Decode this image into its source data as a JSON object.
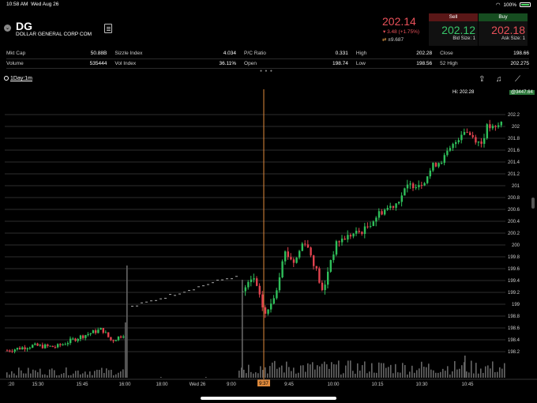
{
  "status": {
    "time": "10:58 AM",
    "date": "Wed Aug 26",
    "battery": "100%"
  },
  "quote": {
    "symbol": "DG",
    "company": "DOLLAR GENERAL CORP COM",
    "last": "202.14",
    "change": "3.48 (+1.75%)",
    "volume_change": "±9.687",
    "sell_label": "Sell",
    "sell_price": "202.12",
    "bid_size": "Bid Size: 1",
    "buy_label": "Buy",
    "buy_price": "202.18",
    "ask_size": "Ask Size: 1"
  },
  "stats": [
    [
      {
        "k": "Mkt Cap",
        "v": "50.88B"
      },
      {
        "k": "Sizzle Index",
        "v": "4.034"
      },
      {
        "k": "P/C Ratio",
        "v": "0.331"
      },
      {
        "k": "High",
        "v": "202.28"
      },
      {
        "k": "Close",
        "v": "198.66"
      }
    ],
    [
      {
        "k": "Volume",
        "v": "535444"
      },
      {
        "k": "Vol Index",
        "v": "36.11%"
      },
      {
        "k": "Open",
        "v": "198.74"
      },
      {
        "k": "Low",
        "v": "198.56"
      },
      {
        "k": "52 High",
        "v": "202.275"
      }
    ]
  ],
  "toolbar": {
    "timeframe": "1Day:1m",
    "share_icon": "share-icon",
    "alert_icon": "bell-icon",
    "draw_icon": "draw-tool-icon"
  },
  "chart_labels": {
    "hi": "Hi: 202.28",
    "badge": "@3447.64"
  },
  "chart_data": {
    "type": "candlestick",
    "y_ticks": [
      "202.2",
      "202",
      "201.8",
      "201.6",
      "201.4",
      "201.2",
      "201",
      "200.8",
      "200.6",
      "200.4",
      "200.2",
      "200",
      "199.8",
      "199.6",
      "199.4",
      "199.2",
      "199",
      "198.8",
      "198.6",
      "198.4",
      "198.2"
    ],
    "x_ticks": [
      ":20",
      "15:30",
      "15:45",
      "16:00",
      "18:00",
      "Wed 26",
      "9:00",
      "9:37",
      "9:45",
      "10:00",
      "10:15",
      "10:30",
      "10:45"
    ],
    "ylim": [
      198.0,
      202.4
    ],
    "cursor_label": "9:37",
    "colors": {
      "up": "#2fbf5a",
      "down": "#e0424e",
      "grid": "#2e2e2e",
      "cursor": "#e08a3c",
      "volume": "#666666"
    }
  }
}
